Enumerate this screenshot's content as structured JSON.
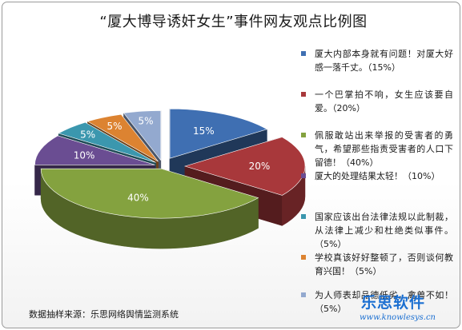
{
  "title": "“厦大博导诱奸女生”事件网友观点比例图",
  "source": "数据抽样来源：乐思网络舆情监测系统",
  "watermark": {
    "name": "乐思软件",
    "url": "www.knowlesys.cn"
  },
  "chart_data": {
    "type": "pie",
    "title": "“厦大博导诱奸女生”事件网友观点比例图",
    "legend_position": "right",
    "slices": [
      {
        "label": "厦大内部本身就有问题！对厦大好感一落千丈。（15%）",
        "value": 15,
        "data_label": "15%",
        "color": "#3f6fb2"
      },
      {
        "label": "一个巴掌拍不响，女生应该要自爱。（20%）",
        "value": 20,
        "data_label": "20%",
        "color": "#a8383b"
      },
      {
        "label": "佩服敢站出来举报的受害者的勇气，希望那些指责受害者的人口下留德！（40%）",
        "value": 40,
        "data_label": "40%",
        "color": "#84a23f"
      },
      {
        "label": "厦大的处理结果太轻！（10%）",
        "value": 10,
        "data_label": "10%",
        "color": "#6a4d92"
      },
      {
        "label": "国家应该出台法律法规以此制裁，从法律上减少和杜绝类似事件。（5%）",
        "value": 5,
        "data_label": "5%",
        "color": "#3b97ae"
      },
      {
        "label": "学校真该好好整顿了，否则谈何教育兴国！（5%）",
        "value": 5,
        "data_label": "5%",
        "color": "#dc8331"
      },
      {
        "label": "为人师表却品德低劣，禽兽不如！（5%）",
        "value": 5,
        "data_label": "5%",
        "color": "#93a9cf"
      }
    ]
  }
}
